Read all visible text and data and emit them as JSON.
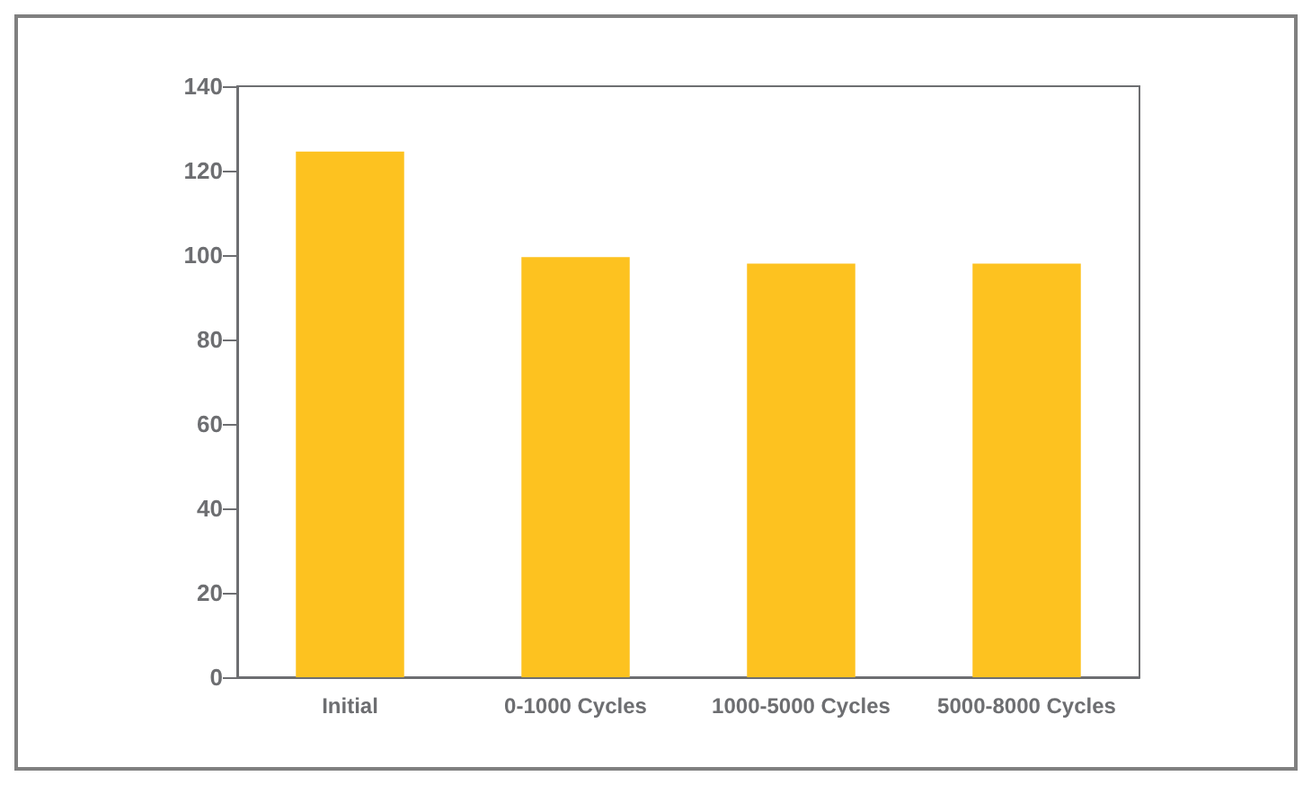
{
  "chart_data": {
    "type": "bar",
    "categories": [
      "Initial",
      "0-1000 Cycles",
      "1000-5000 Cycles",
      "5000-8000 Cycles"
    ],
    "values": [
      124.5,
      99.5,
      98,
      98
    ],
    "color": "#fdc220",
    "ylim": [
      0,
      140
    ],
    "yticks": [
      0,
      20,
      40,
      60,
      80,
      100,
      120,
      140
    ],
    "grid": false
  }
}
